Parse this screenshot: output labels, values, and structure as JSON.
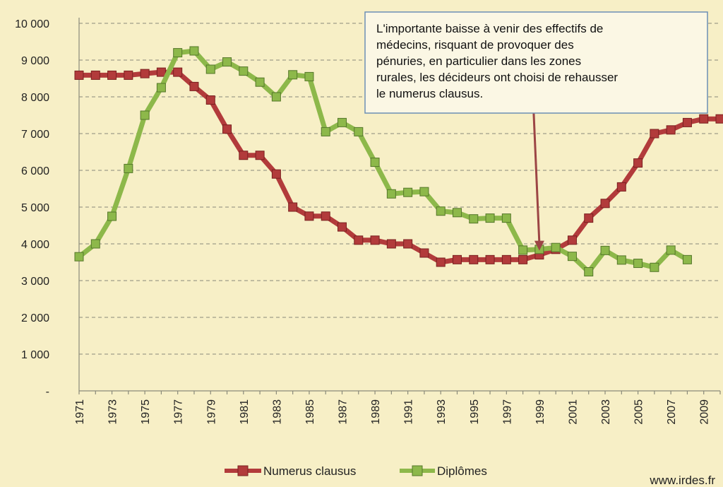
{
  "chart_data": {
    "type": "line",
    "title": "",
    "xlabel": "",
    "ylabel": "",
    "ylim": [
      0,
      10000
    ],
    "y_ticks": [
      "-",
      "1 000",
      "2 000",
      "3 000",
      "4 000",
      "5 000",
      "6 000",
      "7 000",
      "8 000",
      "9 000",
      "10 000"
    ],
    "x_tick_labels": [
      "1971",
      "1973",
      "1975",
      "1977",
      "1979",
      "1981",
      "1983",
      "1985",
      "1987",
      "1989",
      "1991",
      "1993",
      "1995",
      "1997",
      "1999",
      "2001",
      "2003",
      "2005",
      "2007",
      "2009"
    ],
    "x": [
      1971,
      1972,
      1973,
      1974,
      1975,
      1976,
      1977,
      1978,
      1979,
      1980,
      1981,
      1982,
      1983,
      1984,
      1985,
      1986,
      1987,
      1988,
      1989,
      1990,
      1991,
      1992,
      1993,
      1994,
      1995,
      1996,
      1997,
      1998,
      1999,
      2000,
      2001,
      2002,
      2003,
      2004,
      2005,
      2006,
      2007,
      2008,
      2009,
      2010
    ],
    "grid": true,
    "legend_position": "bottom",
    "series": [
      {
        "name": "Numerus clausus",
        "color": "#b23b3b",
        "values": [
          8588,
          8588,
          8588,
          8588,
          8632,
          8671,
          8671,
          8281,
          7913,
          7121,
          6409,
          6409,
          5900,
          5000,
          4754,
          4754,
          4460,
          4100,
          4100,
          4000,
          4000,
          3750,
          3500,
          3570,
          3570,
          3570,
          3570,
          3570,
          3700,
          3850,
          4100,
          4700,
          5100,
          5550,
          6200,
          7000,
          7100,
          7300,
          7400,
          7400
        ]
      },
      {
        "name": "Diplômes",
        "color": "#8db84a",
        "values": [
          3650,
          4000,
          4750,
          6050,
          7500,
          8250,
          9200,
          9250,
          8750,
          8950,
          8700,
          8400,
          8000,
          8600,
          8550,
          7050,
          7300,
          7050,
          6220,
          5360,
          5400,
          5420,
          4890,
          4850,
          4680,
          4700,
          4700,
          3830,
          3850,
          3900,
          3660,
          3240,
          3820,
          3560,
          3470,
          3360,
          3830,
          3570,
          null,
          null
        ]
      }
    ],
    "annotation": "L'importante baisse à venir des effectifs de médecins, risquant de provoquer des pénuries, en particulier dans les zones rurales, les décideurs ont choisi de rehausser le numerus  clausus.",
    "annotation_lines": [
      "L'importante baisse à venir des effectifs de",
      "médecins, risquant de provoquer des",
      "pénuries, en particulier dans les zones",
      "rurales, les décideurs ont choisi de rehausser",
      "le numerus  clausus."
    ],
    "annotation_arrow_target_x": 1999
  },
  "source": "www.irdes.fr",
  "colors": {
    "background": "#f7efc6",
    "arrow": "#9c4545"
  }
}
